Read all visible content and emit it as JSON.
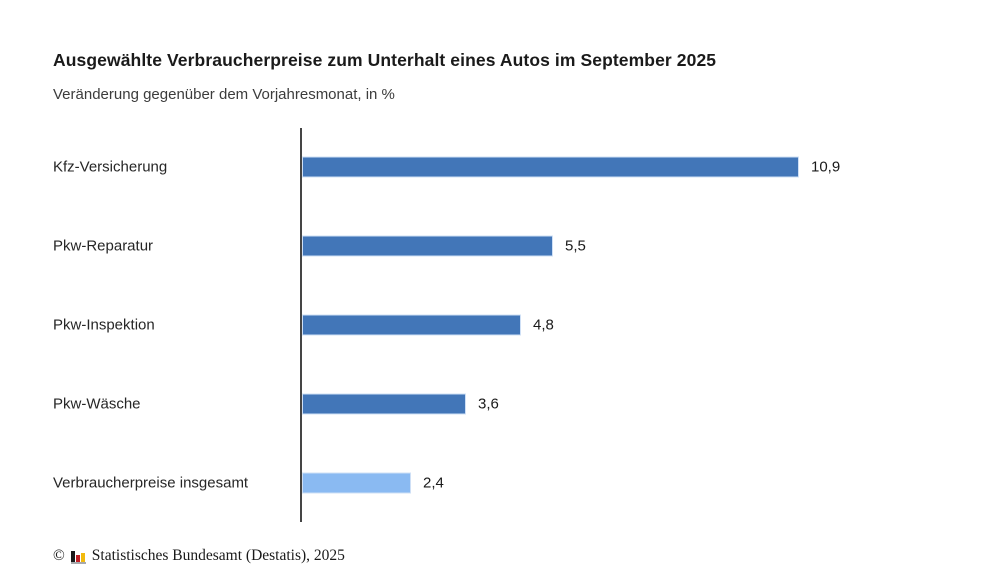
{
  "title": "Ausgewählte Verbraucherpreise zum Unterhalt eines Autos im September 2025",
  "subtitle": "Veränderung gegenüber dem Vorjahresmonat, in %",
  "chart_data": {
    "type": "bar",
    "orientation": "horizontal",
    "title": "Ausgewählte Verbraucherpreise zum Unterhalt eines Autos im September 2025",
    "subtitle": "Veränderung gegenüber dem Vorjahresmonat, in %",
    "unit": "%",
    "categories": [
      "Kfz-Versicherung",
      "Pkw-Reparatur",
      "Pkw-Inspektion",
      "Pkw-Wäsche",
      "Verbraucherpreise insgesamt"
    ],
    "values": [
      10.9,
      5.5,
      4.8,
      3.6,
      2.4
    ],
    "value_labels": [
      "10,9",
      "5,5",
      "4,8",
      "3,6",
      "2,4"
    ],
    "bar_colors": [
      "#4276b8",
      "#4276b8",
      "#4276b8",
      "#4276b8",
      "#8abaf2"
    ],
    "bar_border_color": "#cfe0f6",
    "axis_color": "#454545",
    "xlim": [
      0,
      12
    ],
    "grid": false,
    "legend": "none",
    "value_labels_position": "end-of-bar"
  },
  "footer": {
    "copyright_symbol": "©",
    "source_text": "Statistisches Bundesamt (Destatis), 2025",
    "logo_icon": "destatis-mini-bar-chart-icon",
    "logo_colors": {
      "black": "#1a1a1a",
      "red": "#c01e25",
      "gold": "#f2ba0d",
      "base": "#a7a9ac"
    }
  }
}
